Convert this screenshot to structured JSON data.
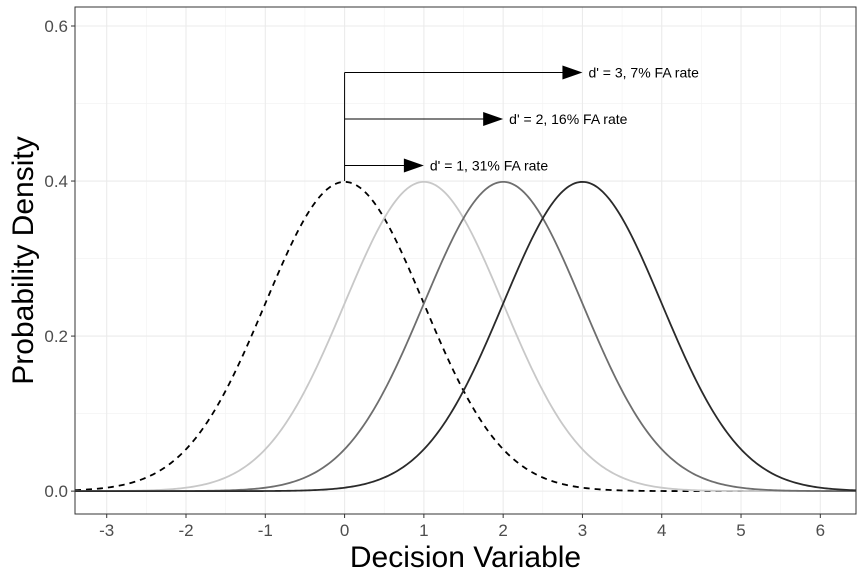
{
  "chart_data": {
    "type": "line",
    "title": "",
    "xlabel": "Decision Variable",
    "ylabel": "Probability Density",
    "xlim": [
      -3.4,
      6.45
    ],
    "ylim": [
      -0.0295,
      0.6245
    ],
    "x_ticks": [
      -3,
      -2,
      -1,
      0,
      1,
      2,
      3,
      4,
      5,
      6
    ],
    "x_tick_labels": [
      "-3",
      "-2",
      "-1",
      "0",
      "1",
      "2",
      "3",
      "4",
      "5",
      "6"
    ],
    "y_ticks": [
      0.0,
      0.2,
      0.4,
      0.6
    ],
    "y_tick_labels": [
      "0.0",
      "0.2",
      "0.4",
      "0.6"
    ],
    "grid": true,
    "legend": "none",
    "series": [
      {
        "mean": 0,
        "sd": 1,
        "color": "#000000",
        "style": "dashed"
      },
      {
        "mean": 1,
        "sd": 1,
        "color": "#c8c8c8",
        "style": "solid"
      },
      {
        "mean": 2,
        "sd": 1,
        "color": "#6e6e6e",
        "style": "solid"
      },
      {
        "mean": 3,
        "sd": 1,
        "color": "#2a2a2a",
        "style": "solid"
      }
    ],
    "annotations": [
      {
        "text": "d' = 1, 31% FA rate",
        "x_start": 0,
        "x_end": 1,
        "y": 0.42
      },
      {
        "text": "d' = 2, 16% FA rate",
        "x_start": 0,
        "x_end": 2,
        "y": 0.48
      },
      {
        "text": "d' = 3, 7% FA rate",
        "x_start": 0,
        "x_end": 3,
        "y": 0.54
      }
    ],
    "annotation_stem": {
      "x": 0,
      "y_from": 0.4,
      "y_to": 0.54
    }
  }
}
